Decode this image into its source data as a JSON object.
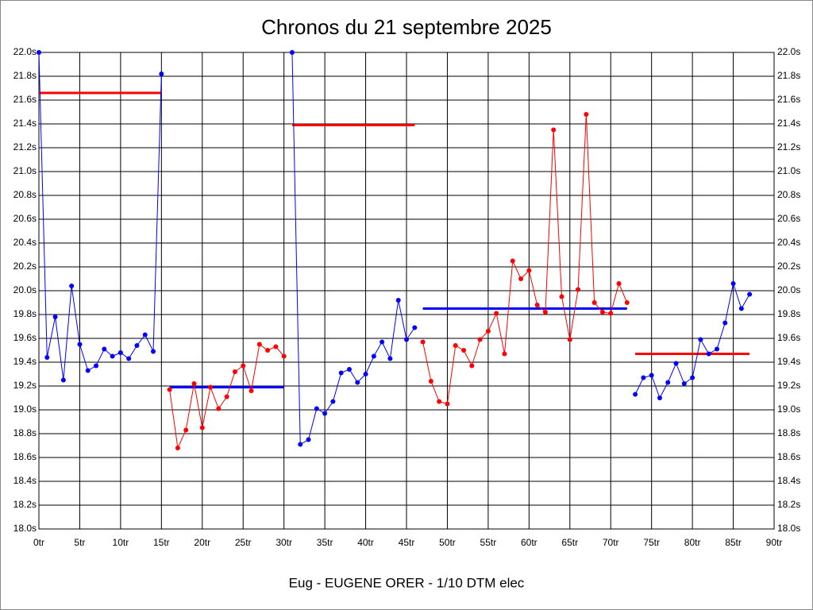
{
  "chart_data": {
    "type": "line",
    "title": "Chronos du 21 septembre 2025",
    "x_label": "Eug - EUGENE ORER - 1/10 DTM elec",
    "xlim": [
      0,
      90
    ],
    "ylim": [
      18.0,
      22.0
    ],
    "xticks": [
      {
        "value": 0,
        "label": "0tr"
      },
      {
        "value": 5,
        "label": "5tr"
      },
      {
        "value": 10,
        "label": "10tr"
      },
      {
        "value": 15,
        "label": "15tr"
      },
      {
        "value": 20,
        "label": "20tr"
      },
      {
        "value": 25,
        "label": "25tr"
      },
      {
        "value": 30,
        "label": "30tr"
      },
      {
        "value": 35,
        "label": "35tr"
      },
      {
        "value": 40,
        "label": "40tr"
      },
      {
        "value": 45,
        "label": "45tr"
      },
      {
        "value": 50,
        "label": "50tr"
      },
      {
        "value": 55,
        "label": "55tr"
      },
      {
        "value": 60,
        "label": "60tr"
      },
      {
        "value": 65,
        "label": "65tr"
      },
      {
        "value": 70,
        "label": "70tr"
      },
      {
        "value": 75,
        "label": "75tr"
      },
      {
        "value": 80,
        "label": "80tr"
      },
      {
        "value": 85,
        "label": "85tr"
      },
      {
        "value": 90,
        "label": "90tr"
      }
    ],
    "yticks": [
      {
        "value": 18.0,
        "label": "18.0s"
      },
      {
        "value": 18.2,
        "label": "18.2s"
      },
      {
        "value": 18.4,
        "label": "18.4s"
      },
      {
        "value": 18.6,
        "label": "18.6s"
      },
      {
        "value": 18.8,
        "label": "18.8s"
      },
      {
        "value": 19.0,
        "label": "19.0s"
      },
      {
        "value": 19.2,
        "label": "19.2s"
      },
      {
        "value": 19.4,
        "label": "19.4s"
      },
      {
        "value": 19.6,
        "label": "19.6s"
      },
      {
        "value": 19.8,
        "label": "19.8s"
      },
      {
        "value": 20.0,
        "label": "20.0s"
      },
      {
        "value": 20.2,
        "label": "20.2s"
      },
      {
        "value": 20.4,
        "label": "20.4s"
      },
      {
        "value": 20.6,
        "label": "20.6s"
      },
      {
        "value": 20.8,
        "label": "20.8s"
      },
      {
        "value": 21.0,
        "label": "21.0s"
      },
      {
        "value": 21.2,
        "label": "21.2s"
      },
      {
        "value": 21.4,
        "label": "21.4s"
      },
      {
        "value": 21.6,
        "label": "21.6s"
      },
      {
        "value": 21.8,
        "label": "21.8s"
      },
      {
        "value": 22.0,
        "label": "22.0s"
      }
    ],
    "grid": true,
    "series": [
      {
        "color": "#0000ff",
        "x": [
          0,
          1,
          2,
          3,
          4,
          5,
          6,
          7,
          8,
          9,
          10,
          11,
          12,
          13,
          14,
          15
        ],
        "values": [
          22.0,
          19.44,
          19.78,
          19.25,
          20.04,
          19.55,
          19.33,
          19.37,
          19.51,
          19.45,
          19.48,
          19.43,
          19.54,
          19.63,
          19.49,
          21.82
        ]
      },
      {
        "color": "#ff0000",
        "x": [
          16,
          17,
          18,
          19,
          20,
          21,
          22,
          23,
          24,
          25,
          26,
          27,
          28,
          29,
          30
        ],
        "values": [
          19.17,
          18.68,
          18.83,
          19.22,
          18.85,
          19.19,
          19.01,
          19.11,
          19.32,
          19.37,
          19.16,
          19.55,
          19.5,
          19.53,
          19.45
        ]
      },
      {
        "color": "#0000ff",
        "x": [
          31,
          32,
          33,
          34,
          35,
          36,
          37,
          38,
          39,
          40,
          41,
          42,
          43,
          44,
          45,
          46
        ],
        "values": [
          22.0,
          18.71,
          18.75,
          19.01,
          18.97,
          19.07,
          19.31,
          19.34,
          19.23,
          19.3,
          19.45,
          19.57,
          19.43,
          19.92,
          19.59,
          19.69
        ]
      },
      {
        "color": "#ff0000",
        "x": [
          47,
          48,
          49,
          50,
          51,
          52,
          53,
          54,
          55,
          56,
          57,
          58,
          59,
          60,
          61,
          62,
          63,
          64,
          65,
          66,
          67,
          68,
          69,
          70,
          71,
          72
        ],
        "values": [
          19.57,
          19.24,
          19.07,
          19.05,
          19.54,
          19.5,
          19.37,
          19.59,
          19.66,
          19.81,
          19.47,
          20.25,
          20.1,
          20.17,
          19.88,
          19.82,
          21.35,
          19.95,
          19.59,
          20.01,
          21.48,
          19.9,
          19.82,
          19.81,
          20.06,
          19.9
        ]
      },
      {
        "color": "#0000ff",
        "x": [
          73,
          74,
          75,
          76,
          77,
          78,
          79,
          80,
          81,
          82,
          83,
          84,
          85,
          86,
          87
        ],
        "values": [
          19.13,
          19.27,
          19.29,
          19.1,
          19.23,
          19.39,
          19.22,
          19.27,
          19.59,
          19.47,
          19.51,
          19.73,
          20.06,
          19.85,
          19.97
        ]
      }
    ],
    "averages": [
      {
        "color": "#ff0000",
        "x": [
          0,
          15
        ],
        "value": 21.66
      },
      {
        "color": "#0000ff",
        "x": [
          16,
          30
        ],
        "value": 19.19
      },
      {
        "color": "#ff0000",
        "x": [
          31,
          46
        ],
        "value": 21.39
      },
      {
        "color": "#0000ff",
        "x": [
          47,
          72
        ],
        "value": 19.85
      },
      {
        "color": "#ff0000",
        "x": [
          73,
          87
        ],
        "value": 19.47
      }
    ]
  }
}
